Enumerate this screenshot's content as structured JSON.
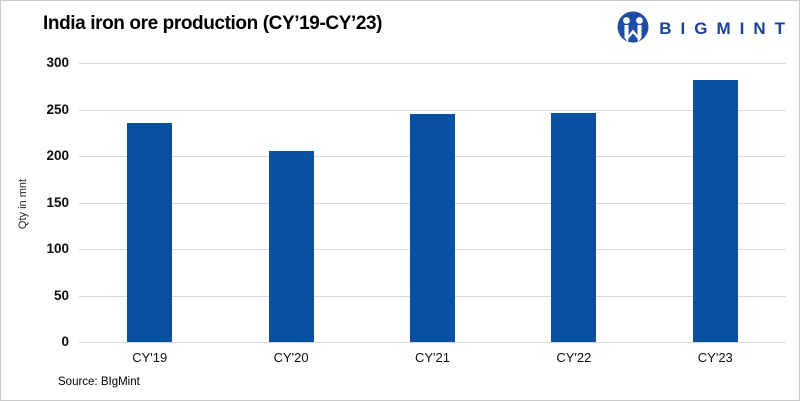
{
  "header": {
    "title": "India iron ore production (CY’19-CY’23)",
    "logo": {
      "text": "BIGMINT",
      "icon": "bigmint-elephant-icon"
    }
  },
  "chart_data": {
    "type": "bar",
    "categories": [
      "CY'19",
      "CY'20",
      "CY'21",
      "CY'22",
      "CY'23"
    ],
    "values": [
      235,
      205,
      245,
      246,
      282
    ],
    "title": "India iron ore production (CY’19-CY’23)",
    "xlabel": "",
    "ylabel": "Qty in mnt",
    "ylim": [
      0,
      300
    ],
    "yticks": [
      0,
      50,
      100,
      150,
      200,
      250,
      300
    ],
    "grid": "horizontal",
    "legend": "none",
    "bar_color": "#0a50a2"
  },
  "footer": {
    "source": "Source: BIgMint"
  },
  "colors": {
    "bar": "#0a50a2",
    "logo_blue": "#1b4296",
    "gridline": "#d9d9d9",
    "border": "#c9c9c9",
    "background": "#ffffff",
    "text": "#000000"
  }
}
